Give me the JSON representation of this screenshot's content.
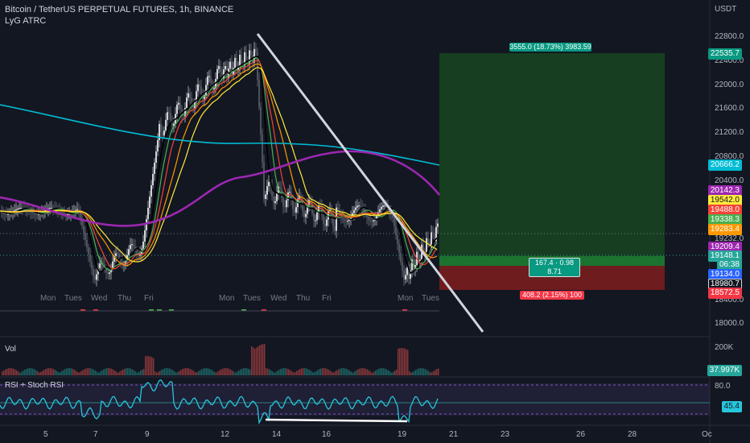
{
  "header": {
    "title": "Bitcoin / TetherUS PERPETUAL FUTURES, 1h, BINANCE",
    "indicator": "LyG ATRC",
    "currency": "USDT"
  },
  "price_axis": {
    "ticks": [
      "22800.0",
      "22400.0",
      "22000.0",
      "21600.0",
      "21200.0",
      "20800.0",
      "20400.0",
      "19232.0",
      "18400.0",
      "18000.0"
    ],
    "tags": [
      {
        "label": "22535.7",
        "color": "#089981"
      },
      {
        "label": "20666.2",
        "color": "#00bcd4"
      },
      {
        "label": "20142.3",
        "color": "#9c27b0"
      },
      {
        "label": "19542.0",
        "color": "#ffeb3b",
        "text": "#131722"
      },
      {
        "label": "19488.0",
        "color": "#f44336"
      },
      {
        "label": "19338.3",
        "color": "#4caf50"
      },
      {
        "label": "19283.4",
        "color": "#ff9800"
      },
      {
        "label": "19209.4",
        "color": "#9c27b0"
      },
      {
        "label": "19148.1",
        "color": "#26a69a"
      },
      {
        "label": "06:38",
        "color": "#26a69a"
      },
      {
        "label": "19134.0",
        "color": "#2962ff"
      },
      {
        "label": "18980.7",
        "color": "#131722"
      },
      {
        "label": "18572.5",
        "color": "#f23645"
      }
    ]
  },
  "time_axis": {
    "labels": [
      "5",
      "7",
      "9",
      "12",
      "14",
      "16",
      "19",
      "21",
      "23",
      "26",
      "28",
      "Oc"
    ],
    "day_labels": [
      "Mon",
      "Tues",
      "Wed",
      "Thu",
      "Fri",
      "Mon",
      "Tues",
      "Wed",
      "Thu",
      "Fri",
      "Mon",
      "Tues"
    ]
  },
  "position": {
    "target_label": "3555.0 (18.73%) 3983.59",
    "entry_label_1": "167.4 · 0.98",
    "entry_label_2": "8.71",
    "stop_label": "408.2 (2.15%) 100"
  },
  "volume": {
    "title": "Vol",
    "tick": "200K",
    "value_tag": "37.997K"
  },
  "rsi": {
    "title": "RSI + Stoch RSI",
    "tick_high": "80.0",
    "value_tag": "45.4",
    "level_upper": 80,
    "level_lower": 20
  },
  "colors": {
    "background": "#131722",
    "long_zone": "#1b5e20",
    "short_zone": "#7f1d1d",
    "rsi_line": "#26c6da",
    "trendline": "#d1d4dc"
  }
}
